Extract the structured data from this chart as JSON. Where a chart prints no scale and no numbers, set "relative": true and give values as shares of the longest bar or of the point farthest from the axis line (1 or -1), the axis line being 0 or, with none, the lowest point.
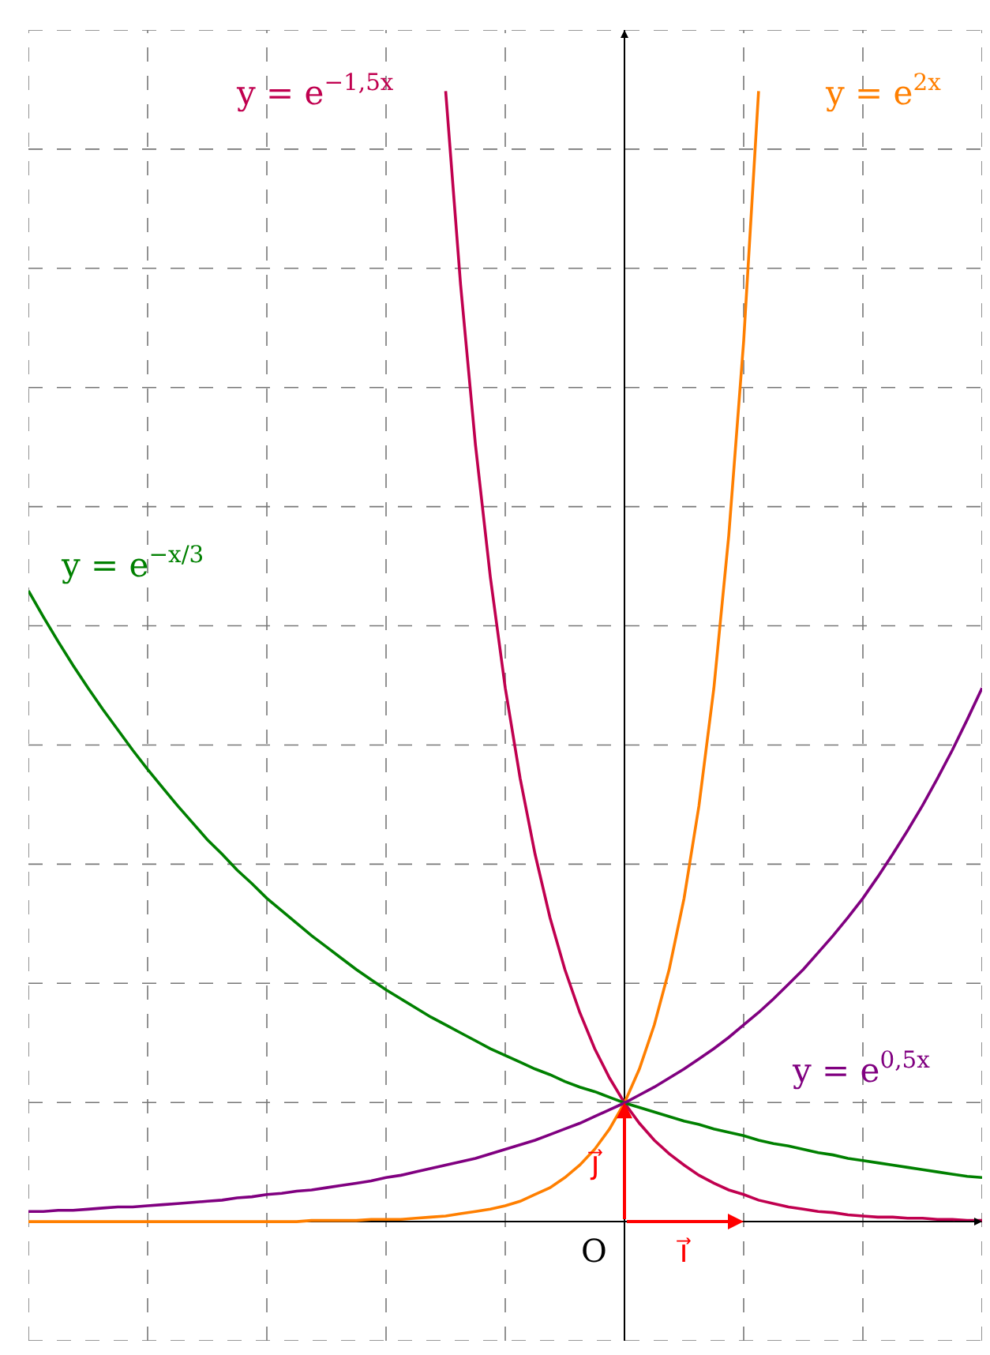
{
  "chart_data": {
    "type": "line",
    "relative": true,
    "grid": true,
    "legend": false,
    "marker": "none",
    "line_style": "solid",
    "categories": [
      null,
      null,
      null,
      null,
      null,
      null,
      null,
      null,
      null,
      null,
      null,
      null,
      null,
      null,
      null,
      null,
      null,
      null,
      null,
      null,
      null,
      null,
      null,
      null,
      null,
      null,
      null,
      null,
      null,
      null,
      null,
      null,
      null,
      null,
      null,
      null,
      null,
      null,
      null,
      null,
      null,
      null,
      null,
      null,
      null,
      null,
      null,
      null,
      null,
      null,
      null,
      null,
      null,
      null,
      null,
      null,
      null,
      null,
      null,
      null,
      null,
      null,
      null,
      null,
      null
    ],
    "series": [
      {
        "name": "y = e$^{2x}$",
        "color": "#ff7f00",
        "values": [
          0,
          0,
          0,
          0,
          0,
          0,
          0,
          0,
          0,
          0,
          0,
          0,
          0,
          0,
          0,
          0,
          0,
          0,
          0,
          0.001,
          0.001,
          0.001,
          0.001,
          0.002,
          0.002,
          0.002,
          0.003,
          0.004,
          0.005,
          0.007,
          0.009,
          0.011,
          0.014,
          0.018,
          0.024,
          0.03,
          0.039,
          0.05,
          0.064,
          0.082,
          0.105,
          0.135,
          0.174,
          0.223,
          0.286,
          0.368,
          0.472,
          0.607,
          0.779,
          1,
          null,
          null,
          null,
          null,
          null,
          null,
          null,
          null,
          null,
          null,
          null,
          null,
          null,
          null,
          null
        ]
      },
      {
        "name": "y = e$^{−1,5x}$",
        "color": "#c0004f",
        "values": [
          null,
          null,
          null,
          null,
          null,
          null,
          null,
          null,
          null,
          null,
          null,
          null,
          null,
          null,
          null,
          null,
          null,
          null,
          null,
          null,
          null,
          null,
          null,
          null,
          null,
          null,
          null,
          null,
          1,
          0.829,
          0.687,
          0.57,
          0.472,
          0.392,
          0.325,
          0.269,
          0.223,
          0.185,
          0.153,
          0.127,
          0.105,
          0.087,
          0.072,
          0.06,
          0.05,
          0.041,
          0.034,
          0.028,
          0.024,
          0.019,
          0.016,
          0.013,
          0.011,
          0.009,
          0.008,
          0.006,
          0.005,
          0.004,
          0.004,
          0.003,
          0.003,
          0.002,
          0.002,
          0.001,
          0.001
        ]
      },
      {
        "name": "y = e$^{−x/3}$",
        "color": "#008000",
        "values": [
          0.558,
          0.535,
          0.513,
          0.492,
          0.472,
          0.453,
          0.435,
          0.417,
          0.4,
          0.384,
          0.368,
          0.353,
          0.338,
          0.325,
          0.311,
          0.299,
          0.286,
          0.275,
          0.264,
          0.253,
          0.243,
          0.233,
          0.223,
          0.214,
          0.205,
          0.197,
          0.189,
          0.181,
          0.174,
          0.167,
          0.16,
          0.153,
          0.147,
          0.141,
          0.135,
          0.13,
          0.124,
          0.119,
          0.115,
          0.11,
          0.105,
          0.101,
          0.097,
          0.093,
          0.089,
          0.086,
          0.082,
          0.079,
          0.076,
          0.072,
          0.069,
          0.067,
          0.064,
          0.061,
          0.059,
          0.056,
          0.054,
          0.052,
          0.05,
          0.048,
          0.046,
          0.044,
          0.042,
          0.04,
          0.039
        ]
      },
      {
        "name": "y = e$^{0,5x}$",
        "color": "#800080",
        "values": [
          0.009,
          0.009,
          0.01,
          0.01,
          0.011,
          0.012,
          0.013,
          0.013,
          0.014,
          0.015,
          0.016,
          0.017,
          0.018,
          0.019,
          0.021,
          0.022,
          0.024,
          0.025,
          0.027,
          0.028,
          0.03,
          0.032,
          0.034,
          0.036,
          0.039,
          0.041,
          0.044,
          0.047,
          0.05,
          0.053,
          0.056,
          0.06,
          0.064,
          0.068,
          0.072,
          0.077,
          0.082,
          0.087,
          0.093,
          0.099,
          0.105,
          0.112,
          0.119,
          0.127,
          0.135,
          0.144,
          0.153,
          0.163,
          0.174,
          0.185,
          0.197,
          0.21,
          0.223,
          0.238,
          0.253,
          0.269,
          0.286,
          0.305,
          0.325,
          0.346,
          0.368,
          0.392,
          0.417,
          0.444,
          0.472
        ]
      }
    ],
    "annotations": [
      "O",
      "i⃗",
      "j⃗"
    ]
  }
}
